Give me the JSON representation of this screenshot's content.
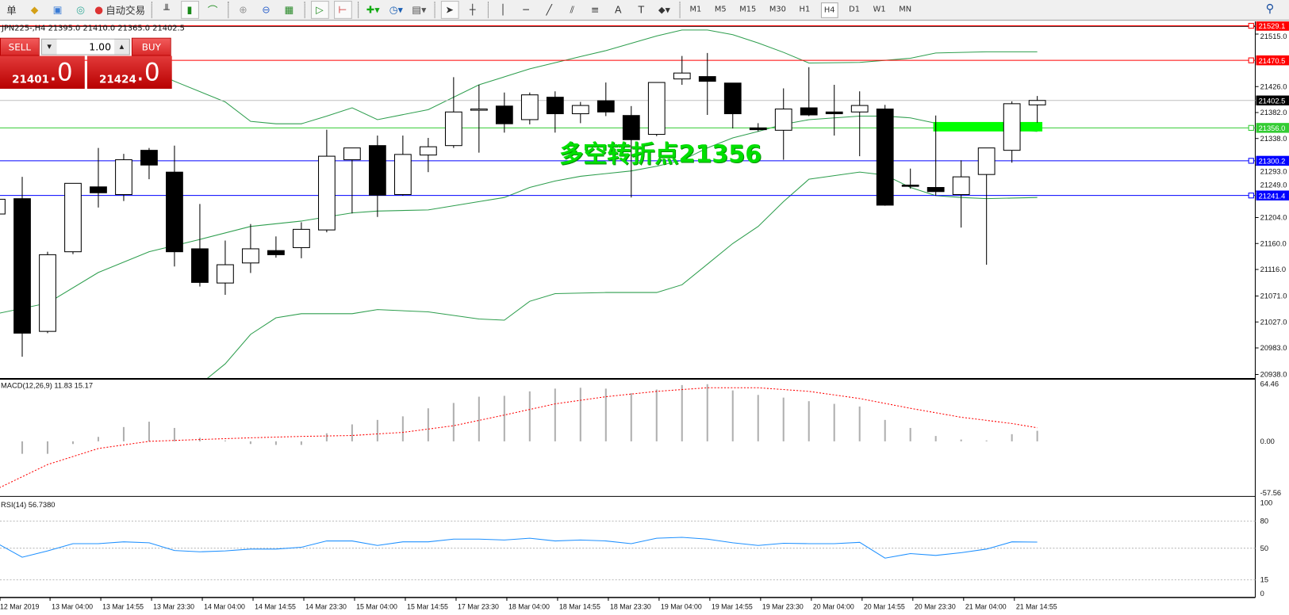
{
  "toolbar": {
    "partial_label": "单",
    "auto_trade": "自动交易",
    "timeframes": [
      "M1",
      "M5",
      "M15",
      "M30",
      "H1",
      "H4",
      "D1",
      "W1",
      "MN"
    ],
    "active_timeframe": "H4"
  },
  "chart": {
    "info": "JPN225-,H4  21395.0 21410.0 21365.0 21402.5",
    "symbol": "JPN225-",
    "timeframe": "H4"
  },
  "trade": {
    "sell": "SELL",
    "buy": "BUY",
    "lot": "1.00",
    "sell_main": "21401",
    "sell_frac": ".0",
    "buy_main": "21424",
    "buy_frac": ".0"
  },
  "annotation": {
    "text": "多空转折点21356",
    "color": "#00e000"
  },
  "colors": {
    "up_candle": "#ffffff",
    "down_candle": "#000000",
    "bands": "#2e9e4e",
    "macd_hist": "#b0b0b0",
    "macd_signal": "#ff0000",
    "rsi": "#1e90ff",
    "sell_buy": "#d92a2a"
  },
  "chart_data": [
    {
      "type": "candlestick",
      "title": "JPN225-,H4",
      "ylim": [
        20938,
        21529.1
      ],
      "yticks": [
        "21515.0",
        "21426.0",
        "21382.0",
        "21338.0",
        "21293.0",
        "21249.0",
        "21204.0",
        "21160.0",
        "21116.0",
        "21071.0",
        "21027.0",
        "20983.0",
        "20938.0"
      ],
      "xticks": [
        "12 Mar 2019",
        "13 Mar 04:00",
        "13 Mar 14:55",
        "13 Mar 23:30",
        "14 Mar 04:00",
        "14 Mar 14:55",
        "14 Mar 23:30",
        "15 Mar 04:00",
        "15 Mar 14:55",
        "17 Mar 23:30",
        "18 Mar 04:00",
        "18 Mar 14:55",
        "18 Mar 23:30",
        "19 Mar 04:00",
        "19 Mar 14:55",
        "19 Mar 23:30",
        "20 Mar 04:00",
        "20 Mar 14:55",
        "20 Mar 23:30",
        "21 Mar 04:00",
        "21 Mar 14:55"
      ],
      "ohlc": [
        [
          21210,
          21245,
          21205,
          21235
        ],
        [
          21236,
          21273,
          20968,
          21008
        ],
        [
          21011,
          21146,
          21008,
          21141
        ],
        [
          21146,
          21262,
          21142,
          21262
        ],
        [
          21256,
          21322,
          21221,
          21246
        ],
        [
          21243,
          21312,
          21232,
          21302
        ],
        [
          21318,
          21322,
          21269,
          21293
        ],
        [
          21281,
          21326,
          21121,
          21146
        ],
        [
          21151,
          21227,
          21087,
          21094
        ],
        [
          21093,
          21165,
          21073,
          21124
        ],
        [
          21127,
          21193,
          21110,
          21151
        ],
        [
          21148,
          21172,
          21136,
          21141
        ],
        [
          21153,
          21196,
          21135,
          21184
        ],
        [
          21183,
          21353,
          21179,
          21308
        ],
        [
          21302,
          21322,
          21211,
          21322
        ],
        [
          21326,
          21343,
          21205,
          21242
        ],
        [
          21243,
          21343,
          21241,
          21311
        ],
        [
          21310,
          21339,
          21281,
          21324
        ],
        [
          21326,
          21442,
          21322,
          21383
        ],
        [
          21386,
          21429,
          21314,
          21388
        ],
        [
          21393,
          21416,
          21348,
          21363
        ],
        [
          21370,
          21416,
          21362,
          21412
        ],
        [
          21408,
          21418,
          21348,
          21380
        ],
        [
          21380,
          21400,
          21364,
          21394
        ],
        [
          21402,
          21433,
          21376,
          21383
        ],
        [
          21377,
          21393,
          21238,
          21336
        ],
        [
          21345,
          21433,
          21342,
          21433
        ],
        [
          21439,
          21478,
          21429,
          21449
        ],
        [
          21443,
          21483,
          21378,
          21435
        ],
        [
          21432,
          21432,
          21355,
          21380
        ],
        [
          21356,
          21364,
          21350,
          21353
        ],
        [
          21352,
          21423,
          21302,
          21388
        ],
        [
          21390,
          21459,
          21376,
          21378
        ],
        [
          21383,
          21429,
          21343,
          21380
        ],
        [
          21383,
          21418,
          21308,
          21394
        ],
        [
          21388,
          21395,
          21224,
          21225
        ],
        [
          21259,
          21287,
          21253,
          21258
        ],
        [
          21255,
          21377,
          21241,
          21248
        ],
        [
          21243,
          21301,
          21187,
          21273
        ],
        [
          21277,
          21322,
          21124,
          21322
        ],
        [
          21318,
          21401,
          21297,
          21397
        ],
        [
          21395,
          21410,
          21365,
          21402.5
        ]
      ],
      "bands": {
        "upper": [
          [
            5.5,
            21445
          ],
          [
            6,
            21435
          ],
          [
            8,
            21400
          ],
          [
            9,
            21367
          ],
          [
            10,
            21363
          ],
          [
            11,
            21363
          ],
          [
            12,
            21376
          ],
          [
            13,
            21390
          ],
          [
            14,
            21370
          ],
          [
            16,
            21387
          ],
          [
            18,
            21429
          ],
          [
            20,
            21456
          ],
          [
            22,
            21477
          ],
          [
            23,
            21487
          ],
          [
            25,
            21512
          ],
          [
            26,
            21522
          ],
          [
            27,
            21522
          ],
          [
            28,
            21514
          ],
          [
            29,
            21500
          ],
          [
            30,
            21484
          ],
          [
            31,
            21466
          ],
          [
            33,
            21467
          ],
          [
            35,
            21474
          ],
          [
            36,
            21483
          ],
          [
            38,
            21485
          ],
          [
            40,
            21485
          ]
        ],
        "middle": [
          [
            -1,
            21041
          ],
          [
            1,
            21059
          ],
          [
            3,
            21111
          ],
          [
            5,
            21146
          ],
          [
            7,
            21167
          ],
          [
            9,
            21189
          ],
          [
            11,
            21198
          ],
          [
            12,
            21205
          ],
          [
            13,
            21212
          ],
          [
            14,
            21215
          ],
          [
            16,
            21217
          ],
          [
            18,
            21231
          ],
          [
            19,
            21238
          ],
          [
            20,
            21255
          ],
          [
            21,
            21266
          ],
          [
            22,
            21274
          ],
          [
            24,
            21283
          ],
          [
            25,
            21291
          ],
          [
            26,
            21301
          ],
          [
            27,
            21322
          ],
          [
            28,
            21339
          ],
          [
            29,
            21350
          ],
          [
            30,
            21362
          ],
          [
            31,
            21370
          ],
          [
            32,
            21373
          ],
          [
            33,
            21376
          ],
          [
            34,
            21376
          ],
          [
            35,
            21373
          ],
          [
            36,
            21364
          ],
          [
            38,
            21357
          ],
          [
            40,
            21350
          ]
        ],
        "lower": [
          [
            7.2,
            20928
          ],
          [
            8,
            20956
          ],
          [
            9,
            21006
          ],
          [
            10,
            21034
          ],
          [
            11,
            21041
          ],
          [
            13,
            21041
          ],
          [
            14,
            21048
          ],
          [
            16,
            21044
          ],
          [
            18,
            21032
          ],
          [
            19,
            21030
          ],
          [
            20,
            21062
          ],
          [
            21,
            21075
          ],
          [
            23,
            21077
          ],
          [
            25,
            21077
          ],
          [
            26,
            21090
          ],
          [
            27,
            21125
          ],
          [
            28,
            21160
          ],
          [
            29,
            21189
          ],
          [
            30,
            21231
          ],
          [
            31,
            21269
          ],
          [
            33,
            21281
          ],
          [
            34,
            21276
          ],
          [
            35,
            21255
          ],
          [
            36,
            21241
          ],
          [
            37,
            21238
          ],
          [
            38,
            21236
          ],
          [
            40,
            21238
          ]
        ]
      },
      "hlines": [
        {
          "price": "21529.1",
          "color": "#ff0000"
        },
        {
          "price": "21470.5",
          "color": "#ff0000"
        },
        {
          "price": "21402.5",
          "color": "#000000",
          "line": "#c0c0c0"
        },
        {
          "price": "21356.0",
          "color": "#33cc33"
        },
        {
          "price": "21300.2",
          "color": "#0000ff"
        },
        {
          "price": "21241.4",
          "color": "#0000ff"
        }
      ],
      "zone": {
        "from_index": 36,
        "to_index": 40.2,
        "low": 21350,
        "high": 21366,
        "color": "#00ff00"
      }
    },
    {
      "type": "bar+line",
      "title": "MACD(12,26,9) 11.83 15.17",
      "ylim": [
        -57.56,
        64.46
      ],
      "yticks": [
        "64.46",
        "0.00",
        "-57.56"
      ],
      "histogram": [
        -14,
        -14,
        -3,
        5,
        16,
        22,
        15,
        4,
        1,
        -3,
        -4,
        -4,
        9,
        19,
        24,
        28,
        37,
        43,
        50,
        51,
        56,
        59,
        60,
        59,
        54,
        58,
        63,
        64,
        57,
        52,
        49,
        45,
        42,
        39,
        24,
        15,
        6,
        2,
        1,
        8,
        11.83
      ],
      "signal": [
        [
          -0.9,
          -52
        ],
        [
          1,
          -26
        ],
        [
          3,
          -8
        ],
        [
          5,
          0
        ],
        [
          7,
          2
        ],
        [
          9,
          4
        ],
        [
          11,
          5.5
        ],
        [
          13,
          6.5
        ],
        [
          15,
          10
        ],
        [
          17,
          17.5
        ],
        [
          19,
          29.5
        ],
        [
          21,
          42
        ],
        [
          23,
          50
        ],
        [
          25,
          56
        ],
        [
          27,
          60
        ],
        [
          29,
          60
        ],
        [
          31,
          56
        ],
        [
          33,
          48
        ],
        [
          35,
          37
        ],
        [
          37,
          27
        ],
        [
          39,
          20
        ],
        [
          40,
          15.17
        ]
      ]
    },
    {
      "type": "line",
      "title": "RSI(14) 56.7380",
      "ylim": [
        0,
        100
      ],
      "yticks": [
        "100",
        "80",
        "50",
        "15",
        "0"
      ],
      "levels": [
        80,
        50,
        15
      ],
      "values": [
        [
          -0.9,
          54
        ],
        [
          0,
          40
        ],
        [
          1,
          47
        ],
        [
          2,
          55
        ],
        [
          3,
          55
        ],
        [
          4,
          57
        ],
        [
          5,
          56
        ],
        [
          6,
          47.5
        ],
        [
          7,
          46
        ],
        [
          8,
          47
        ],
        [
          9,
          49
        ],
        [
          10,
          49
        ],
        [
          11,
          51
        ],
        [
          12,
          58
        ],
        [
          13,
          58
        ],
        [
          14,
          53
        ],
        [
          15,
          57
        ],
        [
          16,
          57
        ],
        [
          17,
          60
        ],
        [
          18,
          60
        ],
        [
          19,
          59
        ],
        [
          20,
          61
        ],
        [
          21,
          58
        ],
        [
          22,
          59
        ],
        [
          23,
          58
        ],
        [
          24,
          55
        ],
        [
          25,
          61
        ],
        [
          26,
          62
        ],
        [
          27,
          60
        ],
        [
          28,
          56
        ],
        [
          29,
          53
        ],
        [
          30,
          55.5
        ],
        [
          31,
          55
        ],
        [
          32,
          55
        ],
        [
          33,
          56.5
        ],
        [
          34,
          39
        ],
        [
          35,
          44
        ],
        [
          36,
          42
        ],
        [
          37,
          45
        ],
        [
          38,
          49
        ],
        [
          39,
          57
        ],
        [
          40,
          56.738
        ]
      ]
    }
  ]
}
